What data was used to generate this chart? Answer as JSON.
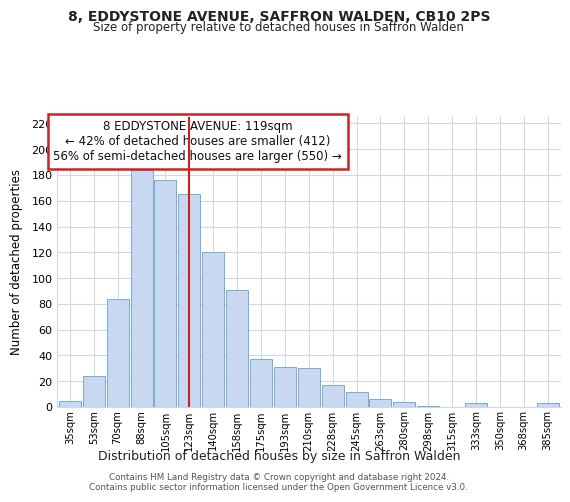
{
  "title": "8, EDDYSTONE AVENUE, SAFFRON WALDEN, CB10 2PS",
  "subtitle": "Size of property relative to detached houses in Saffron Walden",
  "xlabel": "Distribution of detached houses by size in Saffron Walden",
  "ylabel": "Number of detached properties",
  "bar_labels": [
    "35sqm",
    "53sqm",
    "70sqm",
    "88sqm",
    "105sqm",
    "123sqm",
    "140sqm",
    "158sqm",
    "175sqm",
    "193sqm",
    "210sqm",
    "228sqm",
    "245sqm",
    "263sqm",
    "280sqm",
    "298sqm",
    "315sqm",
    "333sqm",
    "350sqm",
    "368sqm",
    "385sqm"
  ],
  "bar_values": [
    5,
    24,
    84,
    184,
    176,
    165,
    120,
    91,
    37,
    31,
    30,
    17,
    12,
    6,
    4,
    1,
    0,
    3,
    0,
    0,
    3
  ],
  "bar_color": "#c8d8f0",
  "bar_edge_color": "#7aaad0",
  "highlight_bar_index": 5,
  "vline_color": "#cc2222",
  "ylim": [
    0,
    225
  ],
  "yticks": [
    0,
    20,
    40,
    60,
    80,
    100,
    120,
    140,
    160,
    180,
    200,
    220
  ],
  "annotation_title": "8 EDDYSTONE AVENUE: 119sqm",
  "annotation_line1": "← 42% of detached houses are smaller (412)",
  "annotation_line2": "56% of semi-detached houses are larger (550) →",
  "annotation_box_color": "#ffffff",
  "annotation_box_edge": "#cc2222",
  "footer1": "Contains HM Land Registry data © Crown copyright and database right 2024.",
  "footer2": "Contains public sector information licensed under the Open Government Licence v3.0.",
  "background_color": "#ffffff",
  "grid_color": "#d0d8e8"
}
